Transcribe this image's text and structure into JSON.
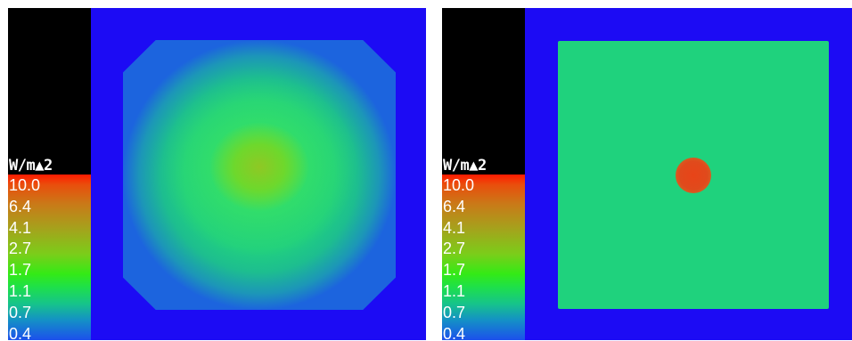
{
  "panels": [
    {
      "id": "left",
      "legend": {
        "unit": "W/m▲2",
        "values": [
          "10.0",
          "6.4",
          "4.1",
          "2.7",
          "1.7",
          "1.1",
          "0.7",
          "0.4"
        ]
      }
    },
    {
      "id": "right",
      "legend": {
        "unit": "W/m▲2",
        "values": [
          "10.0",
          "6.4",
          "4.1",
          "2.7",
          "1.7",
          "1.1",
          "0.7",
          "0.4"
        ]
      }
    }
  ],
  "colors": {
    "background": "#1c0bf4",
    "field_green": "#1fd27d",
    "hot_red": "#e84418",
    "legend_top": "#ff1a00",
    "legend_bottom": "#1c50ec"
  }
}
